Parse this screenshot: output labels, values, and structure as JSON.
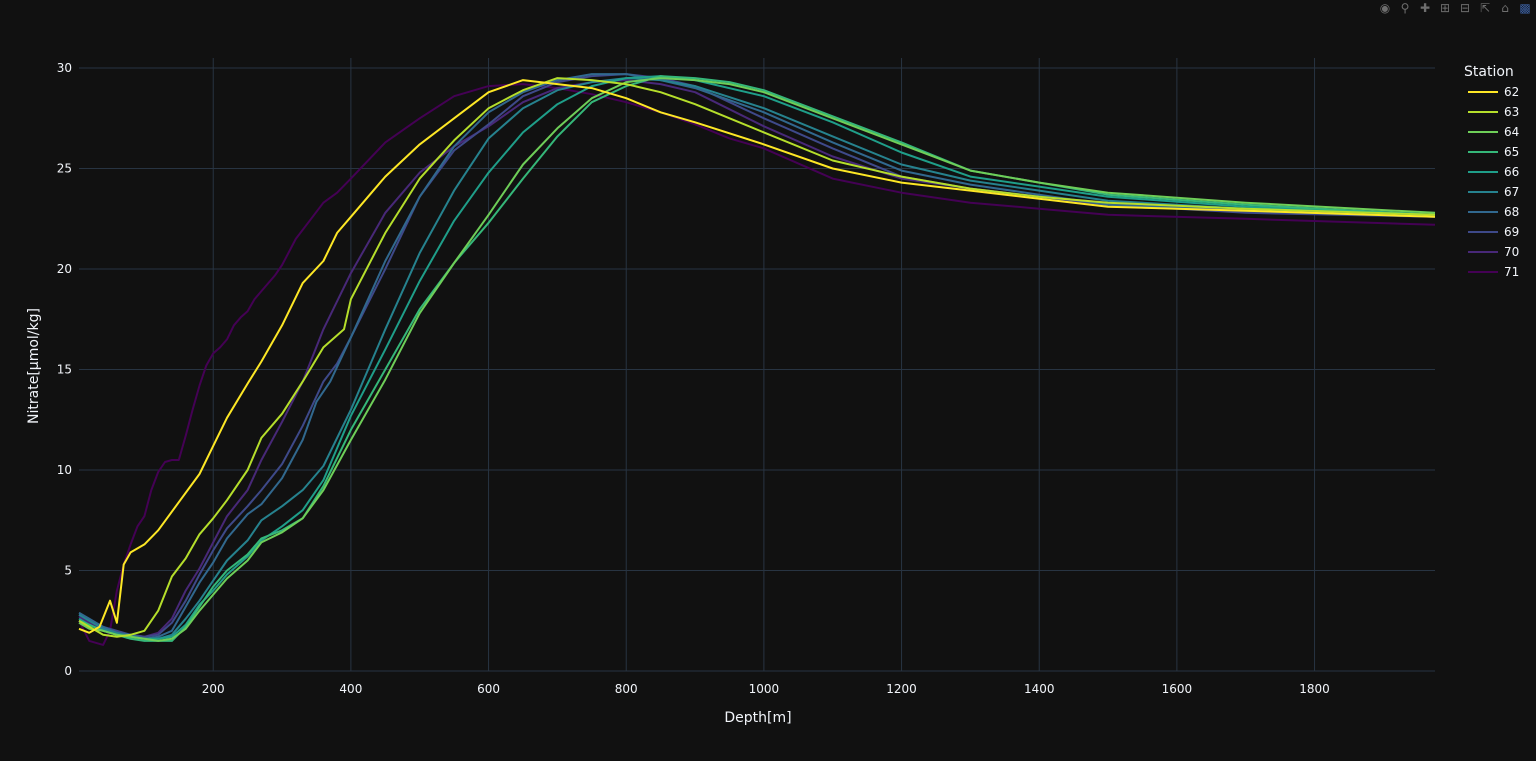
{
  "modebar": {
    "icons": [
      "camera-icon",
      "zoom-icon",
      "pan-icon",
      "zoom-in-icon",
      "zoom-out-icon",
      "autoscale-icon",
      "reset-axes-icon",
      "plotly-logo-icon"
    ]
  },
  "colors": {
    "background": "#111111",
    "grid": "#283442",
    "text": "#f2f5fa"
  },
  "chart_data": {
    "type": "line",
    "title": "",
    "xlabel": "Depth[m]",
    "ylabel": "Nitrate[µmol/kg]",
    "xlim": [
      5,
      1975
    ],
    "ylim": [
      0,
      30.5
    ],
    "xticks": [
      200,
      400,
      600,
      800,
      1000,
      1200,
      1400,
      1600,
      1800
    ],
    "yticks": [
      0,
      5,
      10,
      15,
      20,
      25,
      30
    ],
    "grid": true,
    "legend_title": "Station",
    "legend_position": "top-right",
    "series": [
      {
        "name": "62",
        "color": "#fde725",
        "x": [
          5,
          20,
          35,
          50,
          60,
          70,
          80,
          100,
          120,
          150,
          180,
          200,
          220,
          250,
          270,
          300,
          330,
          360,
          380,
          400,
          450,
          500,
          550,
          600,
          650,
          700,
          750,
          800,
          850,
          900,
          1000,
          1100,
          1200,
          1300,
          1400,
          1500,
          1700,
          1975
        ],
        "y": [
          2.1,
          1.9,
          2.2,
          3.5,
          2.4,
          5.3,
          5.9,
          6.3,
          7.0,
          8.4,
          9.8,
          11.2,
          12.6,
          14.3,
          15.4,
          17.2,
          19.3,
          20.4,
          21.8,
          22.6,
          24.6,
          26.2,
          27.5,
          28.8,
          29.4,
          29.2,
          29.0,
          28.5,
          27.8,
          27.3,
          26.2,
          25.0,
          24.3,
          23.9,
          23.5,
          23.1,
          22.9,
          22.6
        ]
      },
      {
        "name": "63",
        "color": "#b5de2b",
        "x": [
          5,
          20,
          40,
          60,
          80,
          100,
          120,
          140,
          160,
          180,
          200,
          220,
          250,
          270,
          300,
          330,
          360,
          390,
          400,
          450,
          500,
          550,
          600,
          650,
          700,
          750,
          800,
          850,
          900,
          1000,
          1100,
          1200,
          1300,
          1400,
          1500,
          1700,
          1975
        ],
        "y": [
          2.5,
          2.2,
          1.8,
          1.7,
          1.8,
          2.0,
          3.0,
          4.7,
          5.6,
          6.8,
          7.6,
          8.5,
          10.0,
          11.6,
          12.8,
          14.4,
          16.1,
          17.0,
          18.5,
          21.8,
          24.5,
          26.4,
          28.0,
          28.9,
          29.5,
          29.4,
          29.2,
          28.8,
          28.2,
          26.8,
          25.4,
          24.6,
          24.0,
          23.6,
          23.3,
          23.0,
          22.7
        ]
      },
      {
        "name": "64",
        "color": "#6ece58",
        "x": [
          5,
          20,
          40,
          60,
          80,
          100,
          120,
          140,
          160,
          180,
          200,
          220,
          250,
          270,
          300,
          330,
          360,
          400,
          450,
          500,
          550,
          600,
          650,
          700,
          750,
          800,
          850,
          900,
          950,
          1000,
          1100,
          1200,
          1300,
          1400,
          1500,
          1700,
          1975
        ],
        "y": [
          2.4,
          2.1,
          2.0,
          1.8,
          1.7,
          1.6,
          1.5,
          1.6,
          2.1,
          3.0,
          3.8,
          4.6,
          5.5,
          6.4,
          6.9,
          7.6,
          9.0,
          11.5,
          14.5,
          17.8,
          20.3,
          22.7,
          25.2,
          27.0,
          28.5,
          29.3,
          29.5,
          29.4,
          29.2,
          28.8,
          27.5,
          26.2,
          24.9,
          24.3,
          23.8,
          23.3,
          22.8
        ]
      },
      {
        "name": "65",
        "color": "#35b779",
        "x": [
          5,
          20,
          40,
          60,
          80,
          100,
          120,
          140,
          160,
          180,
          200,
          220,
          250,
          270,
          300,
          330,
          360,
          400,
          450,
          500,
          550,
          600,
          650,
          700,
          750,
          800,
          850,
          900,
          950,
          1000,
          1100,
          1200,
          1300,
          1400,
          1500,
          1700,
          1975
        ],
        "y": [
          2.5,
          2.3,
          2.0,
          1.8,
          1.6,
          1.5,
          1.5,
          1.5,
          2.2,
          3.2,
          4.2,
          5.0,
          5.8,
          6.6,
          7.0,
          7.6,
          9.2,
          12.0,
          15.0,
          18.0,
          20.3,
          22.3,
          24.5,
          26.6,
          28.3,
          29.1,
          29.6,
          29.5,
          29.3,
          28.9,
          27.6,
          26.3,
          24.9,
          24.3,
          23.7,
          23.2,
          22.7
        ]
      },
      {
        "name": "66",
        "color": "#1f9e89",
        "x": [
          5,
          20,
          40,
          60,
          80,
          100,
          120,
          140,
          160,
          180,
          200,
          220,
          250,
          270,
          300,
          330,
          360,
          400,
          450,
          500,
          550,
          600,
          650,
          700,
          750,
          800,
          850,
          900,
          1000,
          1100,
          1200,
          1300,
          1400,
          1500,
          1700,
          1975
        ],
        "y": [
          2.6,
          2.3,
          2.0,
          1.8,
          1.7,
          1.6,
          1.6,
          1.7,
          2.3,
          3.3,
          4.0,
          4.8,
          5.7,
          6.5,
          7.2,
          8.0,
          9.5,
          12.7,
          16.0,
          19.4,
          22.4,
          24.8,
          26.8,
          28.2,
          29.1,
          29.5,
          29.6,
          29.4,
          28.6,
          27.3,
          25.8,
          24.6,
          24.1,
          23.6,
          23.1,
          22.7
        ]
      },
      {
        "name": "67",
        "color": "#26828e",
        "x": [
          5,
          20,
          40,
          60,
          80,
          100,
          120,
          140,
          160,
          180,
          200,
          220,
          250,
          270,
          300,
          330,
          360,
          400,
          450,
          500,
          550,
          600,
          650,
          700,
          750,
          800,
          850,
          900,
          1000,
          1100,
          1200,
          1300,
          1400,
          1500,
          1700,
          1975
        ],
        "y": [
          2.8,
          2.5,
          2.1,
          1.9,
          1.7,
          1.6,
          1.6,
          1.8,
          2.6,
          3.5,
          4.5,
          5.5,
          6.5,
          7.5,
          8.2,
          9.0,
          10.2,
          13.0,
          17.0,
          20.8,
          23.9,
          26.5,
          28.0,
          28.9,
          29.3,
          29.5,
          29.4,
          29.1,
          28.0,
          26.6,
          25.2,
          24.4,
          23.9,
          23.4,
          23.0,
          22.7
        ]
      },
      {
        "name": "68",
        "color": "#31688e",
        "x": [
          5,
          20,
          40,
          60,
          80,
          100,
          120,
          140,
          160,
          180,
          200,
          220,
          250,
          270,
          300,
          330,
          350,
          370,
          400,
          450,
          500,
          550,
          600,
          650,
          700,
          750,
          800,
          850,
          900,
          1000,
          1100,
          1200,
          1300,
          1400,
          1500,
          1700,
          1975
        ],
        "y": [
          2.9,
          2.6,
          2.2,
          1.9,
          1.8,
          1.6,
          1.7,
          2.0,
          3.2,
          4.4,
          5.4,
          6.6,
          7.8,
          8.3,
          9.6,
          11.5,
          13.4,
          14.4,
          16.6,
          20.4,
          23.6,
          26.1,
          27.8,
          28.8,
          29.4,
          29.7,
          29.7,
          29.4,
          29.0,
          27.8,
          26.3,
          24.9,
          24.2,
          23.7,
          23.2,
          22.9,
          22.6
        ]
      },
      {
        "name": "69",
        "color": "#3e4989",
        "x": [
          5,
          20,
          40,
          60,
          80,
          100,
          120,
          140,
          160,
          180,
          200,
          220,
          250,
          270,
          300,
          330,
          360,
          380,
          400,
          450,
          500,
          550,
          600,
          650,
          700,
          750,
          800,
          850,
          900,
          1000,
          1100,
          1200,
          1300,
          1400,
          1500,
          1700,
          1975
        ],
        "y": [
          2.8,
          2.5,
          2.2,
          2.0,
          1.8,
          1.7,
          1.8,
          2.4,
          3.5,
          4.8,
          6.0,
          7.1,
          8.2,
          9.0,
          10.3,
          12.2,
          14.4,
          15.3,
          16.6,
          20.0,
          23.6,
          25.9,
          27.2,
          28.6,
          29.3,
          29.6,
          29.7,
          29.5,
          29.1,
          27.5,
          26.0,
          24.6,
          24.0,
          23.6,
          23.2,
          22.8,
          22.6
        ]
      },
      {
        "name": "70",
        "color": "#482878",
        "x": [
          5,
          20,
          40,
          60,
          80,
          100,
          120,
          140,
          160,
          180,
          200,
          220,
          250,
          270,
          300,
          330,
          360,
          400,
          450,
          500,
          550,
          600,
          650,
          700,
          750,
          800,
          850,
          900,
          1000,
          1100,
          1200,
          1300,
          1400,
          1500,
          1700,
          1975
        ],
        "y": [
          2.7,
          2.4,
          2.1,
          1.9,
          1.8,
          1.7,
          1.9,
          2.6,
          4.0,
          5.1,
          6.4,
          7.7,
          9.0,
          10.5,
          12.4,
          14.4,
          17.0,
          19.8,
          22.8,
          24.8,
          26.1,
          27.1,
          28.3,
          29.0,
          29.3,
          29.4,
          29.2,
          28.8,
          27.1,
          25.6,
          24.5,
          24.0,
          23.6,
          23.3,
          22.9,
          22.6
        ]
      },
      {
        "name": "71",
        "color": "#440154",
        "x": [
          5,
          20,
          40,
          50,
          60,
          70,
          80,
          90,
          100,
          110,
          120,
          130,
          140,
          150,
          160,
          170,
          180,
          190,
          200,
          210,
          220,
          230,
          240,
          250,
          260,
          270,
          280,
          290,
          300,
          320,
          340,
          360,
          380,
          400,
          450,
          500,
          550,
          600,
          650,
          700,
          750,
          800,
          850,
          900,
          950,
          1000,
          1100,
          1200,
          1300,
          1400,
          1500,
          1700,
          1975
        ],
        "y": [
          2.5,
          1.5,
          1.3,
          2.0,
          4.0,
          5.3,
          6.3,
          7.2,
          7.7,
          9.0,
          9.9,
          10.4,
          10.5,
          10.5,
          11.7,
          13.0,
          14.2,
          15.2,
          15.8,
          16.1,
          16.5,
          17.2,
          17.6,
          17.9,
          18.5,
          18.9,
          19.3,
          19.7,
          20.2,
          21.5,
          22.4,
          23.3,
          23.8,
          24.5,
          26.3,
          27.5,
          28.6,
          29.1,
          29.2,
          29.0,
          28.7,
          28.3,
          27.8,
          27.2,
          26.5,
          26.0,
          24.5,
          23.8,
          23.3,
          23.0,
          22.7,
          22.5,
          22.2
        ]
      }
    ]
  }
}
